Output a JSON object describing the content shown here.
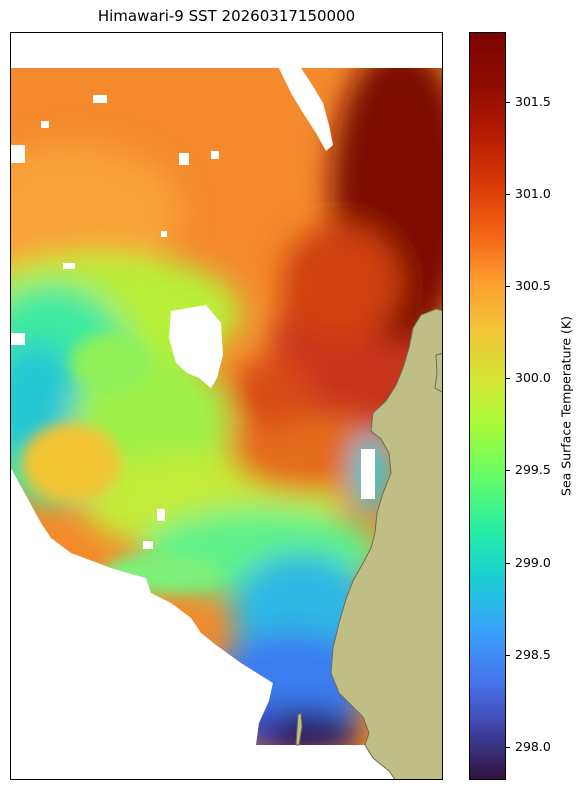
{
  "title": "Himawari-9 SST 20260317150000",
  "colorbar": {
    "label": "Sea Surface Temperature (K)",
    "range": [
      297.82,
      301.88
    ],
    "colormap": "turbo",
    "ticks": [
      {
        "value": 298.0,
        "label": "298.0"
      },
      {
        "value": 298.5,
        "label": "298.5"
      },
      {
        "value": 299.0,
        "label": "299.0"
      },
      {
        "value": 299.5,
        "label": "299.5"
      },
      {
        "value": 300.0,
        "label": "300.0"
      },
      {
        "value": 300.5,
        "label": "300.5"
      },
      {
        "value": 301.0,
        "label": "301.0"
      },
      {
        "value": 301.5,
        "label": "301.5"
      }
    ]
  },
  "map": {
    "land_color": "#bfbf85",
    "coast_color": "#6b6b5a",
    "missing_color": "#ffffff"
  }
}
